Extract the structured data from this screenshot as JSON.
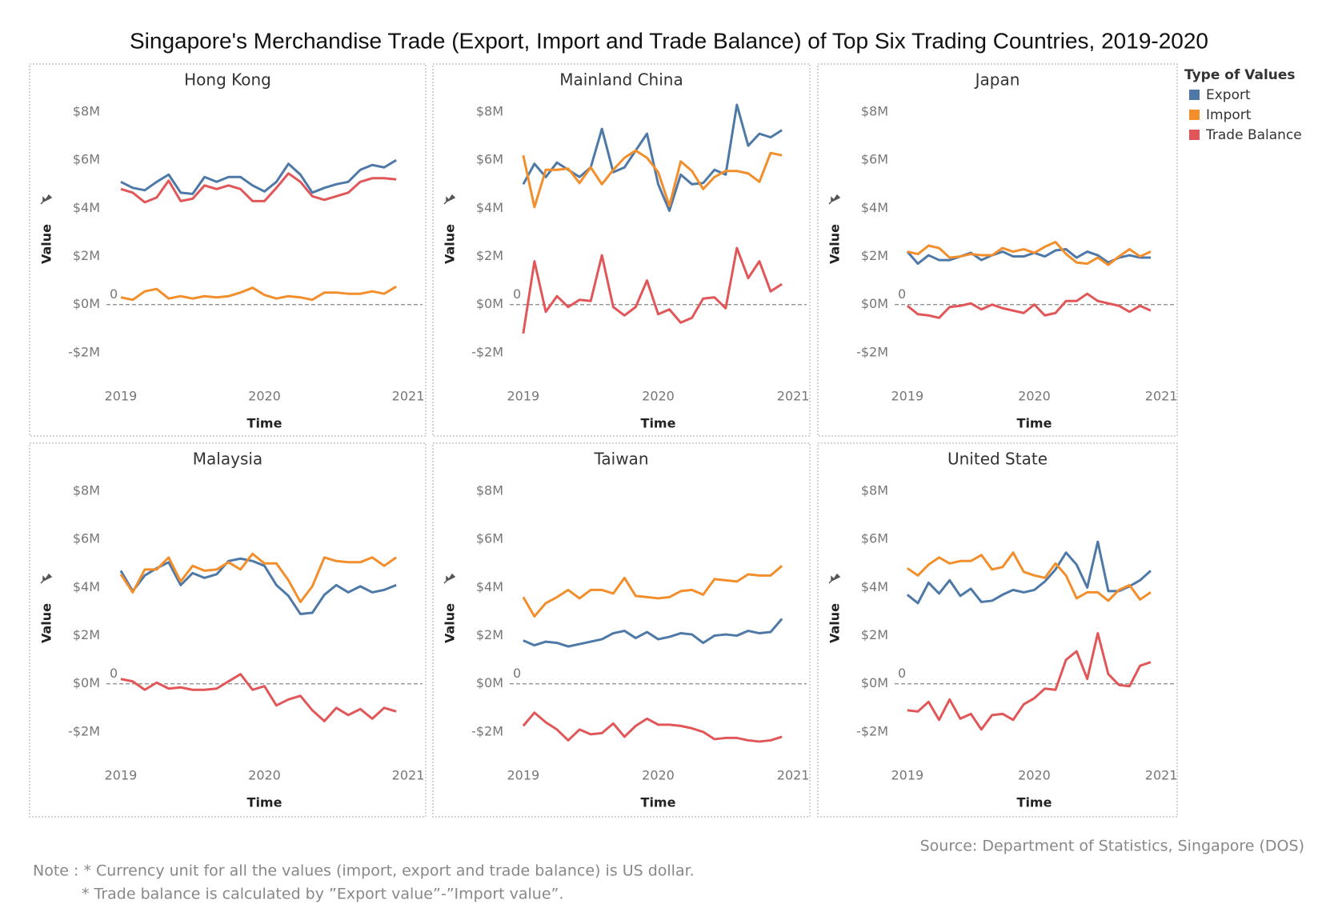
{
  "title": "Singapore's Merchandise Trade (Export, Import and Trade Balance) of Top Six Trading Countries, 2019-2020",
  "legend_title": "Type of Values",
  "source": "Source: Department of Statistics, Singapore (DOS)",
  "notes": [
    "Note : * Currency unit for all the values (import, export and trade balance) is US dollar.",
    "* Trade balance is calculated by ”Export value”-”Import value”."
  ],
  "chart_data": [
    {
      "type": "line",
      "title": "Hong Kong",
      "x_label": "Time",
      "y_label": "Value",
      "x": [
        2019,
        2019.083,
        2019.167,
        2019.25,
        2019.333,
        2019.417,
        2019.5,
        2019.583,
        2019.667,
        2019.75,
        2019.833,
        2019.917,
        2020,
        2020.083,
        2020.167,
        2020.25,
        2020.333,
        2020.417,
        2020.5,
        2020.583,
        2020.667,
        2020.75,
        2020.833,
        2020.917
      ],
      "xlim": [
        2018.9,
        2021.1
      ],
      "xticks": [
        2019,
        2020,
        2021
      ],
      "ylim": [
        -3.1,
        8.5
      ],
      "yticks": [
        {
          "value": -2,
          "label": "-$2M"
        },
        {
          "value": 0,
          "label": "$0M"
        },
        {
          "value": 2,
          "label": "$2M"
        },
        {
          "value": 4,
          "label": "$4M"
        },
        {
          "value": 6,
          "label": "$6M"
        },
        {
          "value": 8,
          "label": "$8M"
        }
      ],
      "reference_line": {
        "value": 0,
        "label": "0"
      },
      "series": [
        {
          "name": "Export",
          "color": "#4e79a7",
          "values": [
            5.1,
            4.85,
            4.75,
            5.1,
            5.4,
            4.65,
            4.6,
            5.3,
            5.1,
            5.3,
            5.3,
            4.95,
            4.7,
            5.1,
            5.85,
            5.4,
            4.65,
            4.85,
            5.0,
            5.1,
            5.6,
            5.8,
            5.7,
            6.0
          ]
        },
        {
          "name": "Import",
          "color": "#f28e2b",
          "values": [
            0.3,
            0.2,
            0.55,
            0.65,
            0.25,
            0.35,
            0.25,
            0.35,
            0.3,
            0.35,
            0.5,
            0.7,
            0.4,
            0.25,
            0.35,
            0.3,
            0.2,
            0.5,
            0.5,
            0.45,
            0.45,
            0.55,
            0.45,
            0.75
          ]
        },
        {
          "name": "Trade Balance",
          "color": "#e15759",
          "values": [
            4.8,
            4.65,
            4.25,
            4.45,
            5.15,
            4.3,
            4.4,
            4.95,
            4.8,
            4.95,
            4.8,
            4.3,
            4.3,
            4.85,
            5.45,
            5.1,
            4.5,
            4.35,
            4.5,
            4.65,
            5.1,
            5.25,
            5.25,
            5.2
          ]
        }
      ]
    },
    {
      "type": "line",
      "title": "Mainland China",
      "x_label": "Time",
      "y_label": "Value",
      "x": [
        2019,
        2019.083,
        2019.167,
        2019.25,
        2019.333,
        2019.417,
        2019.5,
        2019.583,
        2019.667,
        2019.75,
        2019.833,
        2019.917,
        2020,
        2020.083,
        2020.167,
        2020.25,
        2020.333,
        2020.417,
        2020.5,
        2020.583,
        2020.667,
        2020.75,
        2020.833,
        2020.917
      ],
      "xlim": [
        2018.9,
        2021.1
      ],
      "xticks": [
        2019,
        2020,
        2021
      ],
      "ylim": [
        -3.1,
        8.5
      ],
      "yticks": [
        {
          "value": -2,
          "label": "-$2M"
        },
        {
          "value": 0,
          "label": "$0M"
        },
        {
          "value": 2,
          "label": "$2M"
        },
        {
          "value": 4,
          "label": "$4M"
        },
        {
          "value": 6,
          "label": "$6M"
        },
        {
          "value": 8,
          "label": "$8M"
        }
      ],
      "reference_line": {
        "value": 0,
        "label": "0"
      },
      "series": [
        {
          "name": "Export",
          "color": "#4e79a7",
          "values": [
            5.0,
            5.85,
            5.3,
            5.9,
            5.6,
            5.3,
            5.7,
            7.3,
            5.5,
            5.7,
            6.4,
            7.1,
            5.0,
            3.9,
            5.4,
            5.0,
            5.05,
            5.6,
            5.4,
            8.3,
            6.6,
            7.1,
            6.95,
            7.25
          ]
        },
        {
          "name": "Import",
          "color": "#f28e2b",
          "values": [
            6.2,
            4.05,
            5.6,
            5.6,
            5.65,
            5.05,
            5.7,
            5.0,
            5.6,
            6.1,
            6.4,
            6.1,
            5.5,
            4.1,
            5.95,
            5.55,
            4.8,
            5.3,
            5.55,
            5.55,
            5.45,
            5.1,
            6.3,
            6.2
          ]
        },
        {
          "name": "Trade Balance",
          "color": "#e15759",
          "values": [
            -1.2,
            1.8,
            -0.3,
            0.35,
            -0.1,
            0.2,
            0.15,
            2.05,
            -0.1,
            -0.45,
            -0.1,
            1.0,
            -0.4,
            -0.2,
            -0.75,
            -0.55,
            0.25,
            0.3,
            -0.15,
            2.35,
            1.1,
            1.8,
            0.55,
            0.85
          ]
        }
      ]
    },
    {
      "type": "line",
      "title": "Japan",
      "x_label": "Time",
      "y_label": "Value",
      "x": [
        2019,
        2019.083,
        2019.167,
        2019.25,
        2019.333,
        2019.417,
        2019.5,
        2019.583,
        2019.667,
        2019.75,
        2019.833,
        2019.917,
        2020,
        2020.083,
        2020.167,
        2020.25,
        2020.333,
        2020.417,
        2020.5,
        2020.583,
        2020.667,
        2020.75,
        2020.833,
        2020.917
      ],
      "xlim": [
        2018.9,
        2021.1
      ],
      "xticks": [
        2019,
        2020,
        2021
      ],
      "ylim": [
        -3.1,
        8.5
      ],
      "yticks": [
        {
          "value": -2,
          "label": "-$2M"
        },
        {
          "value": 0,
          "label": "$0M"
        },
        {
          "value": 2,
          "label": "$2M"
        },
        {
          "value": 4,
          "label": "$4M"
        },
        {
          "value": 6,
          "label": "$6M"
        },
        {
          "value": 8,
          "label": "$8M"
        }
      ],
      "reference_line": {
        "value": 0,
        "label": "0"
      },
      "series": [
        {
          "name": "Export",
          "color": "#4e79a7",
          "values": [
            2.2,
            1.7,
            2.05,
            1.85,
            1.85,
            2.0,
            2.15,
            1.85,
            2.05,
            2.2,
            2.0,
            2.0,
            2.15,
            2.0,
            2.25,
            2.3,
            1.95,
            2.2,
            2.05,
            1.75,
            1.95,
            2.05,
            1.95,
            1.95
          ]
        },
        {
          "name": "Import",
          "color": "#f28e2b",
          "values": [
            2.2,
            2.1,
            2.45,
            2.35,
            1.95,
            2.0,
            2.1,
            2.05,
            2.05,
            2.35,
            2.2,
            2.3,
            2.15,
            2.4,
            2.6,
            2.1,
            1.75,
            1.7,
            1.95,
            1.65,
            2.0,
            2.3,
            2.0,
            2.2
          ]
        },
        {
          "name": "Trade Balance",
          "color": "#e15759",
          "values": [
            -0.05,
            -0.4,
            -0.45,
            -0.55,
            -0.1,
            -0.05,
            0.05,
            -0.2,
            0.0,
            -0.15,
            -0.25,
            -0.35,
            0.0,
            -0.45,
            -0.35,
            0.15,
            0.15,
            0.45,
            0.15,
            0.05,
            -0.05,
            -0.3,
            -0.05,
            -0.25
          ]
        }
      ]
    },
    {
      "type": "line",
      "title": "Malaysia",
      "x_label": "Time",
      "y_label": "Value",
      "x": [
        2019,
        2019.083,
        2019.167,
        2019.25,
        2019.333,
        2019.417,
        2019.5,
        2019.583,
        2019.667,
        2019.75,
        2019.833,
        2019.917,
        2020,
        2020.083,
        2020.167,
        2020.25,
        2020.333,
        2020.417,
        2020.5,
        2020.583,
        2020.667,
        2020.75,
        2020.833,
        2020.917
      ],
      "xlim": [
        2018.9,
        2021.1
      ],
      "xticks": [
        2019,
        2020,
        2021
      ],
      "ylim": [
        -3.1,
        8.5
      ],
      "yticks": [
        {
          "value": -2,
          "label": "-$2M"
        },
        {
          "value": 0,
          "label": "$0M"
        },
        {
          "value": 2,
          "label": "$2M"
        },
        {
          "value": 4,
          "label": "$4M"
        },
        {
          "value": 6,
          "label": "$6M"
        },
        {
          "value": 8,
          "label": "$8M"
        }
      ],
      "reference_line": {
        "value": 0,
        "label": "0"
      },
      "series": [
        {
          "name": "Export",
          "color": "#4e79a7",
          "values": [
            4.7,
            3.85,
            4.5,
            4.8,
            5.05,
            4.1,
            4.6,
            4.4,
            4.55,
            5.1,
            5.2,
            5.1,
            4.9,
            4.1,
            3.65,
            2.9,
            2.95,
            3.7,
            4.1,
            3.8,
            4.05,
            3.8,
            3.9,
            4.1
          ]
        },
        {
          "name": "Import",
          "color": "#f28e2b",
          "values": [
            4.55,
            3.8,
            4.75,
            4.75,
            5.25,
            4.25,
            4.9,
            4.7,
            4.75,
            5.05,
            4.75,
            5.4,
            5.0,
            5.0,
            4.3,
            3.4,
            4.05,
            5.25,
            5.1,
            5.05,
            5.05,
            5.25,
            4.9,
            5.25
          ]
        },
        {
          "name": "Trade Balance",
          "color": "#e15759",
          "values": [
            0.2,
            0.1,
            -0.25,
            0.05,
            -0.2,
            -0.15,
            -0.25,
            -0.25,
            -0.2,
            0.1,
            0.4,
            -0.25,
            -0.1,
            -0.9,
            -0.65,
            -0.5,
            -1.1,
            -1.55,
            -1.0,
            -1.3,
            -1.05,
            -1.45,
            -1.0,
            -1.15
          ]
        }
      ]
    },
    {
      "type": "line",
      "title": "Taiwan",
      "x_label": "Time",
      "y_label": "Value",
      "x": [
        2019,
        2019.083,
        2019.167,
        2019.25,
        2019.333,
        2019.417,
        2019.5,
        2019.583,
        2019.667,
        2019.75,
        2019.833,
        2019.917,
        2020,
        2020.083,
        2020.167,
        2020.25,
        2020.333,
        2020.417,
        2020.5,
        2020.583,
        2020.667,
        2020.75,
        2020.833,
        2020.917
      ],
      "xlim": [
        2018.9,
        2021.1
      ],
      "xticks": [
        2019,
        2020,
        2021
      ],
      "ylim": [
        -3.1,
        8.5
      ],
      "yticks": [
        {
          "value": -2,
          "label": "-$2M"
        },
        {
          "value": 0,
          "label": "$0M"
        },
        {
          "value": 2,
          "label": "$2M"
        },
        {
          "value": 4,
          "label": "$4M"
        },
        {
          "value": 6,
          "label": "$6M"
        },
        {
          "value": 8,
          "label": "$8M"
        }
      ],
      "reference_line": {
        "value": 0,
        "label": "0"
      },
      "series": [
        {
          "name": "Export",
          "color": "#4e79a7",
          "values": [
            1.8,
            1.6,
            1.75,
            1.7,
            1.55,
            1.65,
            1.75,
            1.85,
            2.1,
            2.2,
            1.9,
            2.15,
            1.85,
            1.95,
            2.1,
            2.05,
            1.7,
            2.0,
            2.05,
            2.0,
            2.2,
            2.1,
            2.15,
            2.7
          ]
        },
        {
          "name": "Import",
          "color": "#f28e2b",
          "values": [
            3.6,
            2.8,
            3.35,
            3.6,
            3.9,
            3.55,
            3.9,
            3.9,
            3.75,
            4.4,
            3.65,
            3.6,
            3.55,
            3.6,
            3.85,
            3.9,
            3.7,
            4.35,
            4.3,
            4.25,
            4.55,
            4.5,
            4.5,
            4.9
          ]
        },
        {
          "name": "Trade Balance",
          "color": "#e15759",
          "values": [
            -1.75,
            -1.2,
            -1.6,
            -1.9,
            -2.35,
            -1.9,
            -2.1,
            -2.05,
            -1.65,
            -2.2,
            -1.75,
            -1.45,
            -1.7,
            -1.7,
            -1.75,
            -1.85,
            -2.0,
            -2.3,
            -2.25,
            -2.25,
            -2.35,
            -2.4,
            -2.35,
            -2.2
          ]
        }
      ]
    },
    {
      "type": "line",
      "title": "United State",
      "x_label": "Time",
      "y_label": "Value",
      "x": [
        2019,
        2019.083,
        2019.167,
        2019.25,
        2019.333,
        2019.417,
        2019.5,
        2019.583,
        2019.667,
        2019.75,
        2019.833,
        2019.917,
        2020,
        2020.083,
        2020.167,
        2020.25,
        2020.333,
        2020.417,
        2020.5,
        2020.583,
        2020.667,
        2020.75,
        2020.833,
        2020.917
      ],
      "xlim": [
        2018.9,
        2021.1
      ],
      "xticks": [
        2019,
        2020,
        2021
      ],
      "ylim": [
        -3.1,
        8.5
      ],
      "yticks": [
        {
          "value": -2,
          "label": "-$2M"
        },
        {
          "value": 0,
          "label": "$0M"
        },
        {
          "value": 2,
          "label": "$2M"
        },
        {
          "value": 4,
          "label": "$4M"
        },
        {
          "value": 6,
          "label": "$6M"
        },
        {
          "value": 8,
          "label": "$8M"
        }
      ],
      "reference_line": {
        "value": 0,
        "label": "0"
      },
      "series": [
        {
          "name": "Export",
          "color": "#4e79a7",
          "values": [
            3.7,
            3.35,
            4.2,
            3.75,
            4.3,
            3.65,
            3.95,
            3.4,
            3.45,
            3.7,
            3.9,
            3.8,
            3.9,
            4.25,
            4.75,
            5.45,
            4.95,
            4.0,
            5.9,
            3.85,
            3.85,
            4.05,
            4.3,
            4.7
          ]
        },
        {
          "name": "Import",
          "color": "#f28e2b",
          "values": [
            4.8,
            4.5,
            4.95,
            5.25,
            5.0,
            5.1,
            5.1,
            5.35,
            4.75,
            4.85,
            5.45,
            4.65,
            4.5,
            4.4,
            5.0,
            4.5,
            3.55,
            3.8,
            3.8,
            3.45,
            3.9,
            4.1,
            3.5,
            3.8
          ]
        },
        {
          "name": "Trade Balance",
          "color": "#e15759",
          "values": [
            -1.1,
            -1.15,
            -0.75,
            -1.5,
            -0.65,
            -1.45,
            -1.25,
            -1.9,
            -1.3,
            -1.25,
            -1.5,
            -0.85,
            -0.6,
            -0.2,
            -0.25,
            1.0,
            1.35,
            0.2,
            2.1,
            0.4,
            -0.05,
            -0.1,
            0.75,
            0.9
          ]
        }
      ]
    }
  ]
}
